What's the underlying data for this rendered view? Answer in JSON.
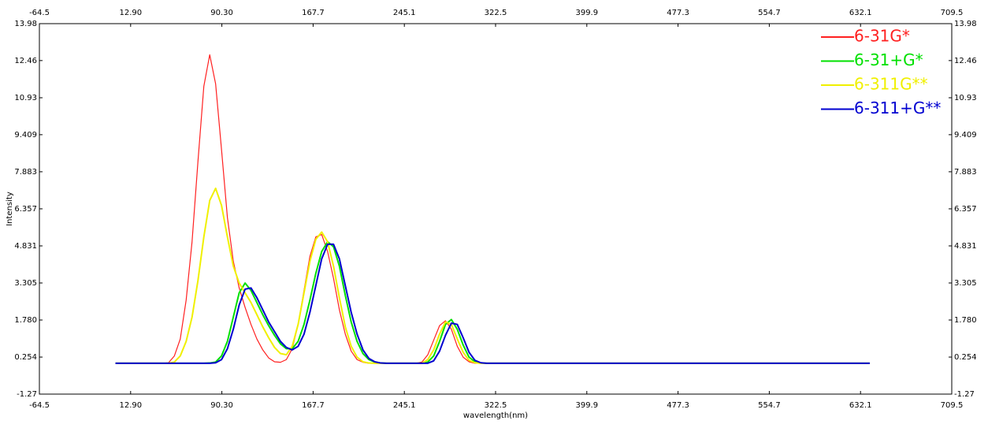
{
  "chart_data": {
    "type": "line",
    "xlabel": "wavelength(nm)",
    "ylabel": "Intensity",
    "x": [
      0,
      40,
      45,
      50,
      55,
      60,
      65,
      70,
      75,
      80,
      85,
      90,
      95,
      100,
      105,
      110,
      115,
      120,
      125,
      130,
      135,
      140,
      145,
      150,
      155,
      160,
      165,
      170,
      175,
      180,
      185,
      190,
      195,
      200,
      205,
      210,
      215,
      220,
      225,
      230,
      235,
      240,
      245,
      250,
      255,
      260,
      265,
      270,
      275,
      280,
      285,
      290,
      295,
      300,
      305,
      310,
      315,
      320,
      640
    ],
    "series": [
      {
        "name": "6-31G*",
        "color": "#ff2020",
        "values": [
          0,
          0,
          0.02,
          0.3,
          1.0,
          2.6,
          5.0,
          8.3,
          11.4,
          12.7,
          11.5,
          8.8,
          6.0,
          4.2,
          3.1,
          2.3,
          1.6,
          1.0,
          0.55,
          0.22,
          0.06,
          0.04,
          0.15,
          0.6,
          1.6,
          3.0,
          4.4,
          5.2,
          5.3,
          4.6,
          3.5,
          2.2,
          1.2,
          0.5,
          0.15,
          0.04,
          0,
          0,
          0,
          0,
          0,
          0,
          0,
          0,
          0,
          0.05,
          0.35,
          0.95,
          1.55,
          1.75,
          1.4,
          0.7,
          0.25,
          0.06,
          0,
          0,
          0,
          0,
          0
        ]
      },
      {
        "name": "6-31+G*",
        "color": "#00e000",
        "values": [
          0,
          0,
          0,
          0,
          0,
          0,
          0,
          0,
          0,
          0.01,
          0.05,
          0.3,
          0.9,
          1.9,
          2.9,
          3.3,
          3.0,
          2.5,
          2.0,
          1.55,
          1.15,
          0.8,
          0.6,
          0.6,
          0.9,
          1.6,
          2.6,
          3.7,
          4.6,
          5.0,
          4.8,
          4.0,
          2.8,
          1.7,
          0.9,
          0.4,
          0.15,
          0.05,
          0.01,
          0,
          0,
          0,
          0,
          0,
          0,
          0,
          0.05,
          0.3,
          0.9,
          1.6,
          1.8,
          1.4,
          0.75,
          0.25,
          0.06,
          0.01,
          0,
          0,
          0
        ]
      },
      {
        "name": "6-311G**",
        "color": "#f0f000",
        "values": [
          0,
          0,
          0,
          0.05,
          0.3,
          0.9,
          1.9,
          3.4,
          5.2,
          6.7,
          7.2,
          6.5,
          5.2,
          4.0,
          3.3,
          2.9,
          2.5,
          2.0,
          1.5,
          1.05,
          0.65,
          0.4,
          0.35,
          0.7,
          1.6,
          2.9,
          4.2,
          5.1,
          5.4,
          5.0,
          4.0,
          2.7,
          1.5,
          0.7,
          0.25,
          0.06,
          0.01,
          0,
          0,
          0,
          0,
          0,
          0,
          0,
          0,
          0,
          0.15,
          0.55,
          1.2,
          1.7,
          1.6,
          1.0,
          0.45,
          0.12,
          0.02,
          0,
          0,
          0,
          0
        ]
      },
      {
        "name": "6-311+G**",
        "color": "#0000d0",
        "values": [
          0,
          0,
          0,
          0,
          0,
          0,
          0,
          0,
          0,
          0,
          0.02,
          0.15,
          0.6,
          1.4,
          2.4,
          3.05,
          3.1,
          2.7,
          2.2,
          1.7,
          1.3,
          0.9,
          0.65,
          0.55,
          0.7,
          1.2,
          2.1,
          3.2,
          4.3,
          4.9,
          4.9,
          4.3,
          3.2,
          2.1,
          1.2,
          0.55,
          0.2,
          0.06,
          0.01,
          0,
          0,
          0,
          0,
          0,
          0,
          0,
          0,
          0.1,
          0.5,
          1.15,
          1.65,
          1.6,
          1.05,
          0.45,
          0.12,
          0.02,
          0,
          0,
          0
        ]
      }
    ],
    "xlim": [
      -64.5,
      709.5
    ],
    "xticks": [
      -64.5,
      {
        "value": 12.9,
        "label": "12.90"
      },
      {
        "value": 90.3,
        "label": "90.30"
      },
      167.7,
      245.1,
      322.5,
      399.9,
      477.3,
      554.7,
      632.1,
      709.5
    ],
    "ylim": [
      -1.27,
      13.98
    ],
    "yticks": [
      13.98,
      12.46,
      10.93,
      9.409,
      7.883,
      6.357,
      4.831,
      3.305,
      {
        "value": 1.78,
        "label": "1.780"
      },
      0.254,
      -1.27
    ],
    "grid": false,
    "legend": "upper right"
  }
}
